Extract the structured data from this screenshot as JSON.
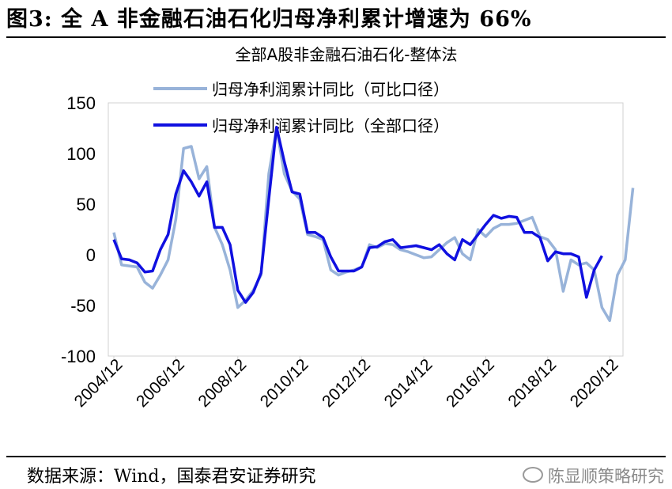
{
  "figure_title": "图3: 全 A 非金融石油石化归母净利累计增速为 66%",
  "source": "数据来源：Wind，国泰君安证券研究",
  "watermark": "陈显顺策略研究",
  "chart_data": {
    "type": "line",
    "title": "全部A股非金融石油石化-整体法",
    "x_tick_labels": [
      "2004/12",
      "2006/12",
      "2008/12",
      "2010/12",
      "2012/12",
      "2014/12",
      "2016/12",
      "2018/12",
      "2020/12"
    ],
    "x_start": "2004/12",
    "x_end": "2021/03",
    "x_step": "quarter",
    "ylim": [
      -100,
      150
    ],
    "y_ticks": [
      150,
      100,
      50,
      0,
      -50,
      -100
    ],
    "grid": false,
    "legend_position": "top-center",
    "series": [
      {
        "name": "归母净利润累计同比（可比口径）",
        "color": "#98b3d9",
        "values": [
          22,
          -10,
          -11,
          -12,
          -27,
          -33,
          -20,
          -5,
          35,
          105,
          107,
          75,
          87,
          27,
          10,
          -15,
          -52,
          -45,
          -35,
          -20,
          80,
          125,
          80,
          63,
          55,
          20,
          18,
          15,
          -15,
          -20,
          -17,
          -15,
          -12,
          10,
          7,
          11,
          10,
          5,
          3,
          0,
          -3,
          -2,
          5,
          12,
          17,
          1,
          -5,
          25,
          18,
          26,
          30,
          30,
          31,
          34,
          37,
          18,
          15,
          5,
          -36,
          -5,
          -10,
          -8,
          -15,
          -52,
          -65,
          -20,
          -5,
          66
        ]
      },
      {
        "name": "归母净利润累计同比（全部口径）",
        "color": "#1010e0",
        "values": [
          15,
          -4,
          -5,
          -8,
          -17,
          -16,
          5,
          20,
          60,
          83,
          72,
          58,
          72,
          27,
          27,
          10,
          -35,
          -47,
          -37,
          -18,
          55,
          126,
          92,
          62,
          60,
          22,
          22,
          17,
          -2,
          -16,
          -16,
          -16,
          -12,
          7,
          8,
          13,
          15,
          7,
          8,
          9,
          7,
          5,
          10,
          1,
          -5,
          15,
          10,
          20,
          30,
          39,
          36,
          38,
          37,
          22,
          22,
          17,
          -6,
          3,
          1,
          1,
          -2,
          -42,
          -15,
          -1
        ]
      }
    ]
  }
}
